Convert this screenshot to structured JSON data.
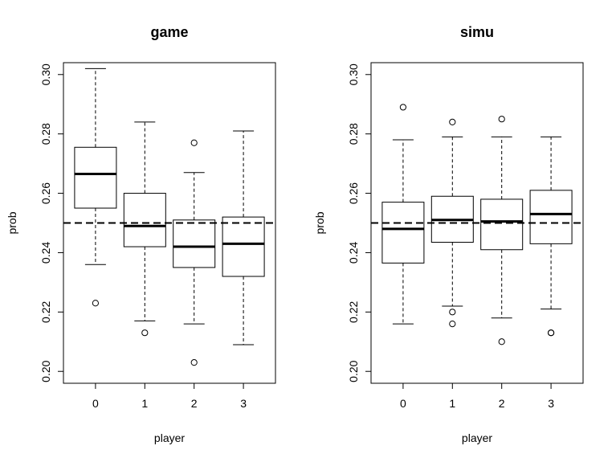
{
  "chart_data": [
    {
      "type": "box",
      "title": "game",
      "xlabel": "player",
      "ylabel": "prob",
      "ylim": [
        0.196,
        0.304
      ],
      "yticks": [
        "0.20",
        "0.22",
        "0.24",
        "0.26",
        "0.28",
        "0.30"
      ],
      "ytick_values": [
        0.2,
        0.22,
        0.24,
        0.26,
        0.28,
        0.3
      ],
      "reference_line": 0.25,
      "categories": [
        "0",
        "1",
        "2",
        "3"
      ],
      "boxes": [
        {
          "whisker_low": 0.236,
          "q1": 0.255,
          "median": 0.2665,
          "q3": 0.2755,
          "whisker_high": 0.302,
          "outliers": [
            0.223
          ]
        },
        {
          "whisker_low": 0.217,
          "q1": 0.242,
          "median": 0.249,
          "q3": 0.26,
          "whisker_high": 0.284,
          "outliers": [
            0.213
          ]
        },
        {
          "whisker_low": 0.216,
          "q1": 0.235,
          "median": 0.242,
          "q3": 0.251,
          "whisker_high": 0.267,
          "outliers": [
            0.277,
            0.203
          ]
        },
        {
          "whisker_low": 0.209,
          "q1": 0.232,
          "median": 0.243,
          "q3": 0.252,
          "whisker_high": 0.281,
          "outliers": []
        }
      ]
    },
    {
      "type": "box",
      "title": "simu",
      "xlabel": "player",
      "ylabel": "prob",
      "ylim": [
        0.196,
        0.304
      ],
      "yticks": [
        "0.20",
        "0.22",
        "0.24",
        "0.26",
        "0.28",
        "0.30"
      ],
      "ytick_values": [
        0.2,
        0.22,
        0.24,
        0.26,
        0.28,
        0.3
      ],
      "reference_line": 0.25,
      "categories": [
        "0",
        "1",
        "2",
        "3"
      ],
      "boxes": [
        {
          "whisker_low": 0.216,
          "q1": 0.2365,
          "median": 0.248,
          "q3": 0.257,
          "whisker_high": 0.278,
          "outliers": [
            0.289
          ]
        },
        {
          "whisker_low": 0.222,
          "q1": 0.2435,
          "median": 0.251,
          "q3": 0.259,
          "whisker_high": 0.279,
          "outliers": [
            0.284,
            0.22,
            0.216
          ]
        },
        {
          "whisker_low": 0.218,
          "q1": 0.241,
          "median": 0.2505,
          "q3": 0.258,
          "whisker_high": 0.279,
          "outliers": [
            0.285,
            0.21
          ]
        },
        {
          "whisker_low": 0.221,
          "q1": 0.243,
          "median": 0.253,
          "q3": 0.261,
          "whisker_high": 0.279,
          "outliers": [
            0.213,
            0.213
          ]
        }
      ]
    }
  ]
}
